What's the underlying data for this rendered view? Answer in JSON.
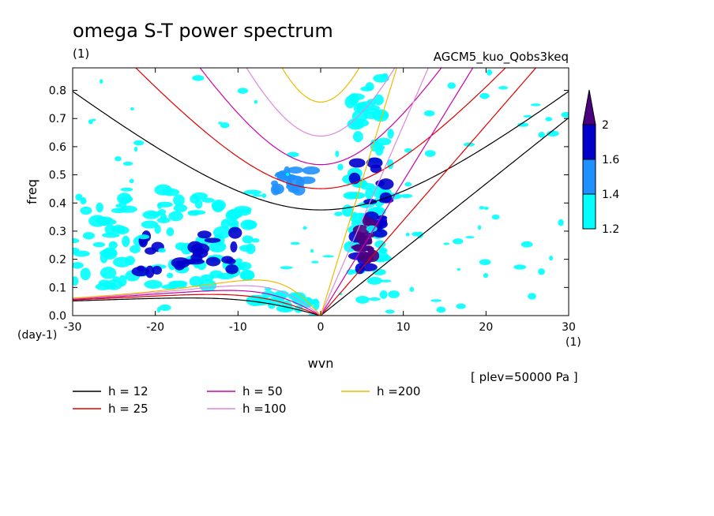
{
  "chart_data": {
    "type": "heatmap",
    "title": "omega S-T power spectrum",
    "subtitle_left": "(1)",
    "subtitle_right": "AGCM5_kuo_Qobs3keq",
    "xlabel": "wvn",
    "ylabel": "freq",
    "y_units": "(day-1)",
    "x_units": "(1)",
    "annotation": "[ plev=50000 Pa ]",
    "xlim": [
      -30,
      30
    ],
    "ylim": [
      0,
      0.88
    ],
    "xticks": [
      -30,
      -20,
      -10,
      0,
      10,
      20,
      30
    ],
    "xtick_labels": [
      "-30",
      "-20",
      "-10",
      "0",
      "10",
      "20",
      "30"
    ],
    "yticks": [
      0,
      0.1,
      0.2,
      0.3,
      0.4,
      0.5,
      0.6,
      0.7,
      0.8
    ],
    "ytick_labels": [
      "0.0",
      "0.1",
      "0.2",
      "0.3",
      "0.4",
      "0.5",
      "0.6",
      "0.7",
      "0.8"
    ],
    "colorbar": {
      "levels": [
        1.2,
        1.4,
        1.6,
        2
      ],
      "labels": [
        "1.2",
        "1.4",
        "1.6",
        "2"
      ],
      "colors": [
        "#00ffff",
        "#1e90ff",
        "#0000cd",
        "#4b0082"
      ]
    },
    "dispersion_curves": [
      {
        "label": "h = 12",
        "h": 12,
        "color": "#000000"
      },
      {
        "label": "h = 25",
        "h": 25,
        "color": "#dd0000"
      },
      {
        "label": "h = 50",
        "h": 50,
        "color": "#cc00aa"
      },
      {
        "label": "h =100",
        "h": 100,
        "color": "#dd88dd"
      },
      {
        "label": "h =200",
        "h": 200,
        "color": "#eebb00"
      }
    ],
    "power_regions": [
      {
        "level": 1.2,
        "x": [
          3,
          9
        ],
        "y": [
          0.05,
          0.85
        ]
      },
      {
        "level": 1.6,
        "x": [
          4,
          8
        ],
        "y": [
          0.15,
          0.55
        ]
      },
      {
        "level": 2,
        "x": [
          4.5,
          6.5
        ],
        "y": [
          0.2,
          0.35
        ]
      },
      {
        "level": 1.2,
        "x": [
          -30,
          -8
        ],
        "y": [
          0.1,
          0.45
        ]
      },
      {
        "level": 1.6,
        "x": [
          -22,
          -10
        ],
        "y": [
          0.15,
          0.3
        ]
      },
      {
        "level": 1.2,
        "x": [
          -8,
          0
        ],
        "y": [
          0.02,
          0.08
        ]
      },
      {
        "level": 1.4,
        "x": [
          -6,
          -1
        ],
        "y": [
          0.44,
          0.52
        ]
      },
      {
        "level": 1.2,
        "x": [
          -30,
          30
        ],
        "y": [
          0,
          0.88
        ]
      }
    ]
  }
}
